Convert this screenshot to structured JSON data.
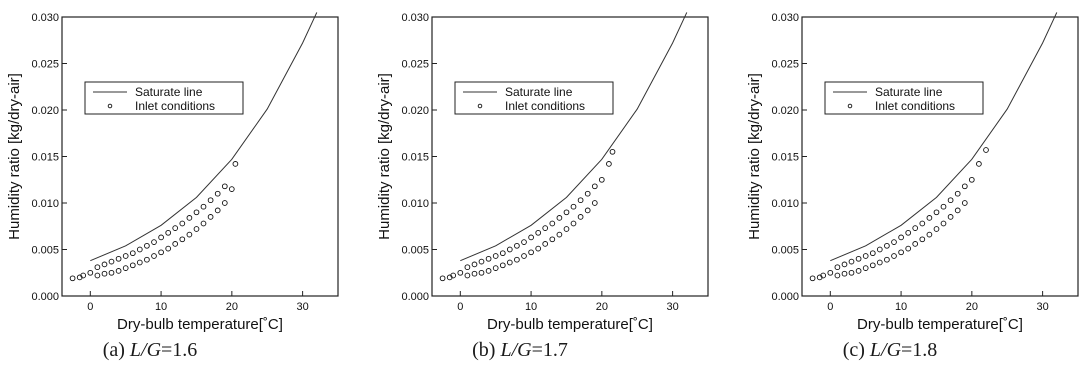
{
  "chart_data": [
    {
      "type": "scatter",
      "xlabel": "Dry-bulb temperature[˚C]",
      "ylabel": "Humidity ratio [kg/dry-air]",
      "xlim": [
        -4,
        35
      ],
      "ylim": [
        0.0,
        0.03
      ],
      "xticks": [
        "0",
        "10",
        "20",
        "30"
      ],
      "yticks": [
        "0.000",
        "0.005",
        "0.010",
        "0.015",
        "0.020",
        "0.025",
        "0.030"
      ],
      "legend": {
        "placement": "upper-left",
        "entries": [
          "Saturate line",
          "Inlet conditions"
        ]
      },
      "series": [
        {
          "name": "Saturate line",
          "kind": "line",
          "x": [
            0,
            5,
            10,
            15,
            20,
            25,
            30,
            32
          ],
          "y": [
            0.0038,
            0.0054,
            0.0076,
            0.0106,
            0.0147,
            0.0201,
            0.0272,
            0.0305
          ]
        },
        {
          "name": "Inlet conditions",
          "kind": "scatter",
          "x": [
            -2.5,
            -1.5,
            -1,
            0,
            1,
            1,
            2,
            2,
            3,
            3,
            4,
            4,
            5,
            5,
            6,
            6,
            7,
            7,
            8,
            8,
            9,
            9,
            10,
            10,
            11,
            11,
            12,
            12,
            13,
            13,
            14,
            14,
            15,
            15,
            16,
            16,
            17,
            17,
            18,
            18,
            19,
            19,
            20,
            20.5
          ],
          "y": [
            0.0019,
            0.002,
            0.0022,
            0.0025,
            0.0022,
            0.0031,
            0.0024,
            0.0034,
            0.0025,
            0.0037,
            0.0027,
            0.004,
            0.003,
            0.0043,
            0.0033,
            0.0046,
            0.0036,
            0.005,
            0.0039,
            0.0054,
            0.0043,
            0.0058,
            0.0047,
            0.0063,
            0.0051,
            0.0068,
            0.0056,
            0.0073,
            0.0061,
            0.0078,
            0.0066,
            0.0084,
            0.0072,
            0.009,
            0.0078,
            0.0096,
            0.0085,
            0.0103,
            0.0092,
            0.011,
            0.01,
            0.0118,
            0.0115,
            0.0142
          ]
        }
      ],
      "caption": {
        "prefix": "(a)",
        "var": "L/G",
        "value": "=1.6"
      }
    },
    {
      "type": "scatter",
      "xlabel": "Dry-bulb temperature[˚C]",
      "ylabel": "Humidity ratio [kg/dry-air]",
      "xlim": [
        -4,
        35
      ],
      "ylim": [
        0.0,
        0.03
      ],
      "xticks": [
        "0",
        "10",
        "20",
        "30"
      ],
      "yticks": [
        "0.000",
        "0.005",
        "0.010",
        "0.015",
        "0.020",
        "0.025",
        "0.030"
      ],
      "legend": {
        "placement": "upper-left",
        "entries": [
          "Saturate line",
          "Inlet conditions"
        ]
      },
      "series": [
        {
          "name": "Saturate line",
          "kind": "line",
          "x": [
            0,
            5,
            10,
            15,
            20,
            25,
            30,
            32
          ],
          "y": [
            0.0038,
            0.0054,
            0.0076,
            0.0106,
            0.0147,
            0.0201,
            0.0272,
            0.0305
          ]
        },
        {
          "name": "Inlet conditions",
          "kind": "scatter",
          "x": [
            -2.5,
            -1.5,
            -1,
            0,
            1,
            1,
            2,
            2,
            3,
            3,
            4,
            4,
            5,
            5,
            6,
            6,
            7,
            7,
            8,
            8,
            9,
            9,
            10,
            10,
            11,
            11,
            12,
            12,
            13,
            13,
            14,
            14,
            15,
            15,
            16,
            16,
            17,
            17,
            18,
            18,
            19,
            19,
            20,
            21,
            21.5
          ],
          "y": [
            0.0019,
            0.002,
            0.0022,
            0.0025,
            0.0022,
            0.0031,
            0.0024,
            0.0034,
            0.0025,
            0.0037,
            0.0027,
            0.004,
            0.003,
            0.0043,
            0.0033,
            0.0046,
            0.0036,
            0.005,
            0.0039,
            0.0054,
            0.0043,
            0.0058,
            0.0047,
            0.0063,
            0.0051,
            0.0068,
            0.0056,
            0.0073,
            0.0061,
            0.0078,
            0.0066,
            0.0084,
            0.0072,
            0.009,
            0.0078,
            0.0096,
            0.0085,
            0.0103,
            0.0092,
            0.011,
            0.01,
            0.0118,
            0.0125,
            0.0142,
            0.0155
          ]
        }
      ],
      "caption": {
        "prefix": "(b)",
        "var": "L/G",
        "value": "=1.7"
      }
    },
    {
      "type": "scatter",
      "xlabel": "Dry-bulb temperature[˚C]",
      "ylabel": "Humidity ratio [kg/dry-air]",
      "xlim": [
        -4,
        35
      ],
      "ylim": [
        0.0,
        0.03
      ],
      "xticks": [
        "0",
        "10",
        "20",
        "30"
      ],
      "yticks": [
        "0.000",
        "0.005",
        "0.010",
        "0.015",
        "0.020",
        "0.025",
        "0.030"
      ],
      "legend": {
        "placement": "upper-left",
        "entries": [
          "Saturate line",
          "Inlet conditions"
        ]
      },
      "series": [
        {
          "name": "Saturate line",
          "kind": "line",
          "x": [
            0,
            5,
            10,
            15,
            20,
            25,
            30,
            32
          ],
          "y": [
            0.0038,
            0.0054,
            0.0076,
            0.0106,
            0.0147,
            0.0201,
            0.0272,
            0.0305
          ]
        },
        {
          "name": "Inlet conditions",
          "kind": "scatter",
          "x": [
            -2.5,
            -1.5,
            -1,
            0,
            1,
            1,
            2,
            2,
            3,
            3,
            4,
            4,
            5,
            5,
            6,
            6,
            7,
            7,
            8,
            8,
            9,
            9,
            10,
            10,
            11,
            11,
            12,
            12,
            13,
            13,
            14,
            14,
            15,
            15,
            16,
            16,
            17,
            17,
            18,
            18,
            19,
            19,
            20,
            21,
            22
          ],
          "y": [
            0.0019,
            0.002,
            0.0022,
            0.0025,
            0.0022,
            0.0031,
            0.0024,
            0.0034,
            0.0025,
            0.0037,
            0.0027,
            0.004,
            0.003,
            0.0043,
            0.0033,
            0.0046,
            0.0036,
            0.005,
            0.0039,
            0.0054,
            0.0043,
            0.0058,
            0.0047,
            0.0063,
            0.0051,
            0.0068,
            0.0056,
            0.0073,
            0.0061,
            0.0078,
            0.0066,
            0.0084,
            0.0072,
            0.009,
            0.0078,
            0.0096,
            0.0085,
            0.0103,
            0.0092,
            0.011,
            0.01,
            0.0118,
            0.0125,
            0.0142,
            0.0157
          ]
        }
      ],
      "caption": {
        "prefix": "(c)",
        "var": "L/G",
        "value": "=1.8"
      }
    }
  ]
}
